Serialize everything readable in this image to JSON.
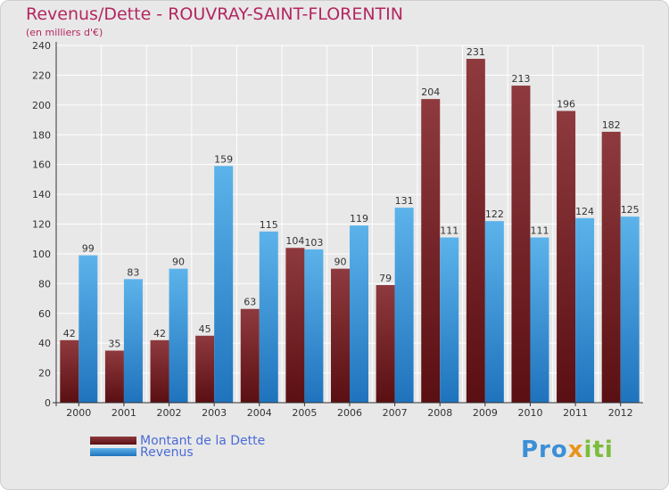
{
  "header": {
    "title": "Revenus/Dette - ROUVRAY-SAINT-FLORENTIN",
    "subtitle": "(en milliers d'€)"
  },
  "legend": {
    "debt_label": "Montant de la Dette",
    "revenue_label": "Revenus"
  },
  "logo": {
    "parts": [
      "Pro",
      "x",
      "iti"
    ]
  },
  "colors": {
    "debt_light": "#8e3a3e",
    "debt_dark": "#5a0f12",
    "revenue_light": "#5cb3ea",
    "revenue_dark": "#1f73bd",
    "grid": "#ffffff",
    "label": "#333333"
  },
  "chart_data": {
    "type": "bar",
    "title": "Revenus/Dette - ROUVRAY-SAINT-FLORENTIN",
    "ylabel": "(en milliers d'€)",
    "xlabel": "",
    "categories": [
      "2000",
      "2001",
      "2002",
      "2003",
      "2004",
      "2005",
      "2006",
      "2007",
      "2008",
      "2009",
      "2010",
      "2011",
      "2012"
    ],
    "series": [
      {
        "name": "Montant de la Dette",
        "values": [
          42,
          35,
          42,
          45,
          63,
          104,
          90,
          79,
          204,
          231,
          213,
          196,
          182
        ]
      },
      {
        "name": "Revenus",
        "values": [
          99,
          83,
          90,
          159,
          115,
          103,
          119,
          131,
          111,
          122,
          111,
          124,
          125
        ]
      }
    ],
    "ylim": [
      0,
      240
    ],
    "yticks": [
      0,
      20,
      40,
      60,
      80,
      100,
      120,
      140,
      160,
      180,
      200,
      220,
      240
    ],
    "grid": true,
    "legend_position": "bottom-left"
  }
}
